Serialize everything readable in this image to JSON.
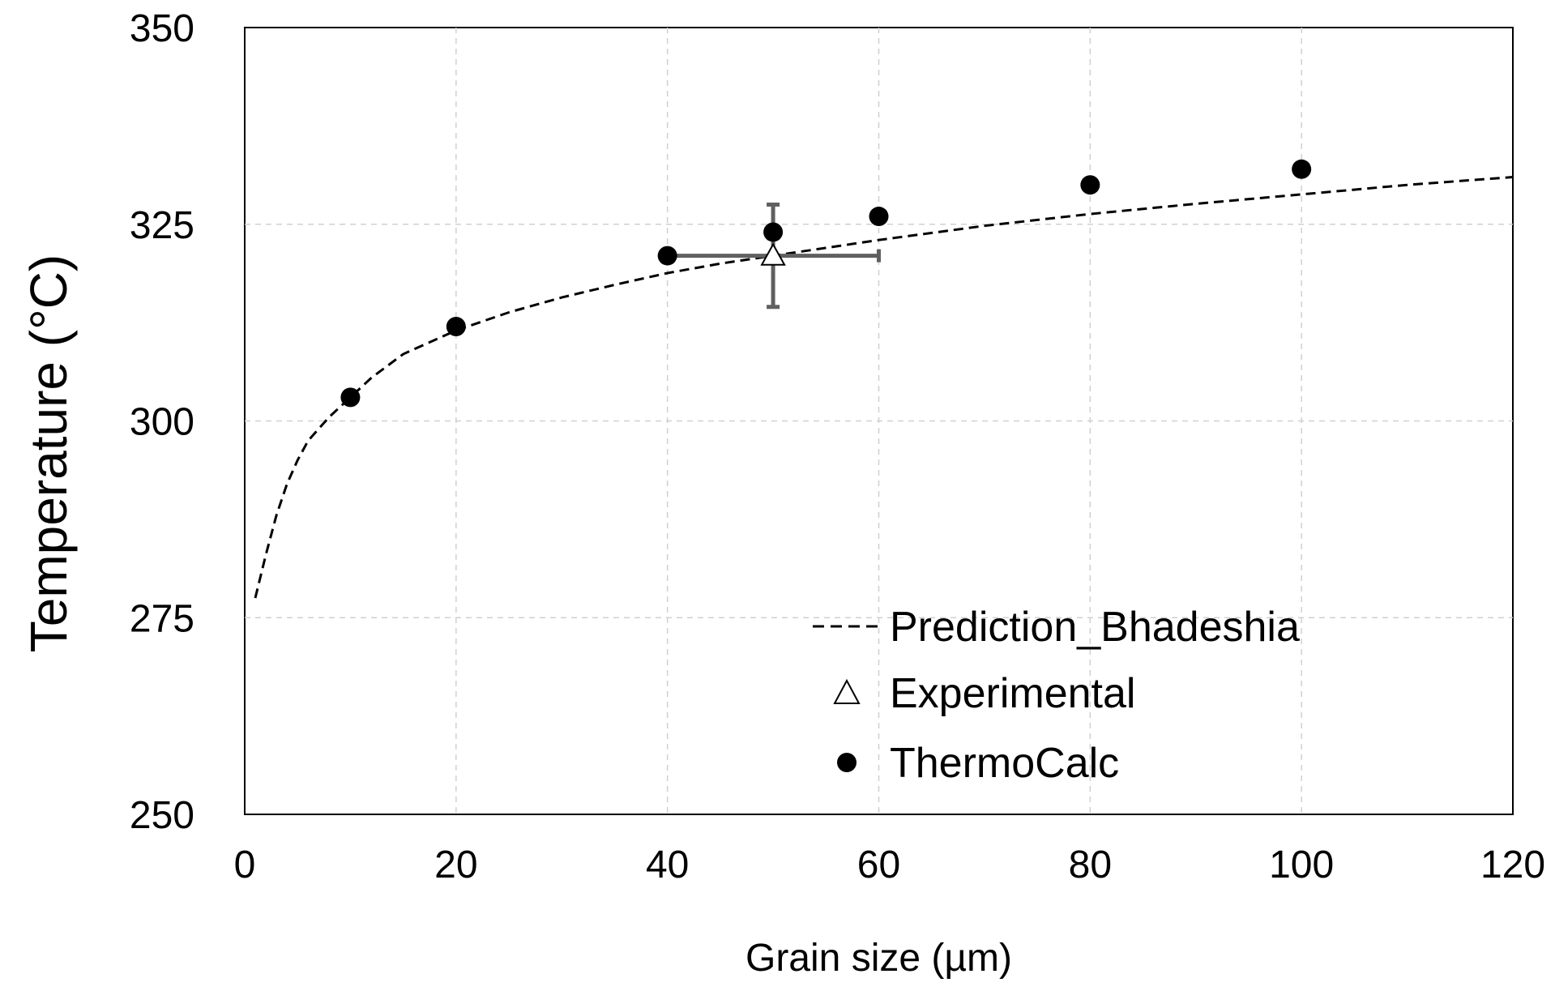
{
  "chart_data": {
    "type": "scatter",
    "title": "",
    "xlabel": "Grain size (µm)",
    "ylabel": "Temperature (°C)",
    "xlim": [
      0,
      120
    ],
    "ylim": [
      250,
      350
    ],
    "x_ticks": [
      0,
      20,
      40,
      60,
      80,
      100,
      120
    ],
    "y_ticks": [
      250,
      275,
      300,
      325,
      350
    ],
    "grid": true,
    "legend_position": "bottom-right",
    "series": [
      {
        "name": "Prediction_Bhadeshia",
        "kind": "line",
        "style": "dashed",
        "color": "#000000",
        "x": [
          1,
          2,
          3,
          4,
          5,
          6,
          7,
          8,
          10,
          12,
          15,
          20,
          25,
          30,
          35,
          40,
          45,
          50,
          60,
          70,
          80,
          90,
          100,
          110,
          120
        ],
        "y": [
          277.5,
          283,
          288,
          292,
          295,
          297.5,
          299,
          300.5,
          303,
          305.5,
          308.5,
          311.5,
          313.8,
          315.7,
          317.3,
          318.8,
          320,
          321,
          323,
          324.8,
          326.3,
          327.6,
          328.8,
          330,
          331
        ]
      },
      {
        "name": "Experimental",
        "kind": "marker",
        "marker": "triangle-open",
        "color": "#000000",
        "points": [
          {
            "x": 50,
            "y": 321,
            "xerr": 10,
            "yerr_low": 6.5,
            "yerr_high": 6.5
          }
        ],
        "errorbar_color": "#606060"
      },
      {
        "name": "ThermoCalc",
        "kind": "marker",
        "marker": "circle-filled",
        "color": "#000000",
        "x": [
          10,
          20,
          40,
          50,
          60,
          80,
          100
        ],
        "y": [
          303,
          312,
          321,
          324,
          326,
          330,
          332
        ]
      }
    ]
  }
}
